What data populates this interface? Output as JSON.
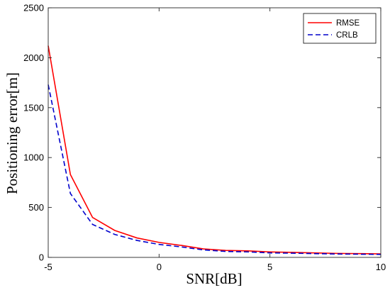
{
  "chart_data": {
    "type": "line",
    "title": "",
    "xlabel": "SNR[dB]",
    "ylabel": "Positioning error[m]",
    "xlim": [
      -5,
      10
    ],
    "ylim": [
      0,
      2500
    ],
    "xticks": [
      -5,
      0,
      5,
      10
    ],
    "yticks": [
      0,
      500,
      1000,
      1500,
      2000,
      2500
    ],
    "grid": false,
    "legend_position": "top-right",
    "x": [
      -5,
      -4,
      -3,
      -2,
      -1,
      0,
      1,
      2,
      3,
      4,
      5,
      6,
      7,
      8,
      9,
      10
    ],
    "series": [
      {
        "name": "RMSE",
        "color": "#ff0000",
        "line_style": "solid",
        "values": [
          2120,
          830,
          400,
          270,
          195,
          150,
          120,
          85,
          70,
          65,
          55,
          50,
          45,
          40,
          38,
          35
        ]
      },
      {
        "name": "CRLB",
        "color": "#0000cc",
        "line_style": "dashed",
        "values": [
          1730,
          640,
          330,
          230,
          170,
          130,
          105,
          75,
          60,
          55,
          45,
          42,
          38,
          34,
          32,
          30
        ]
      }
    ]
  }
}
